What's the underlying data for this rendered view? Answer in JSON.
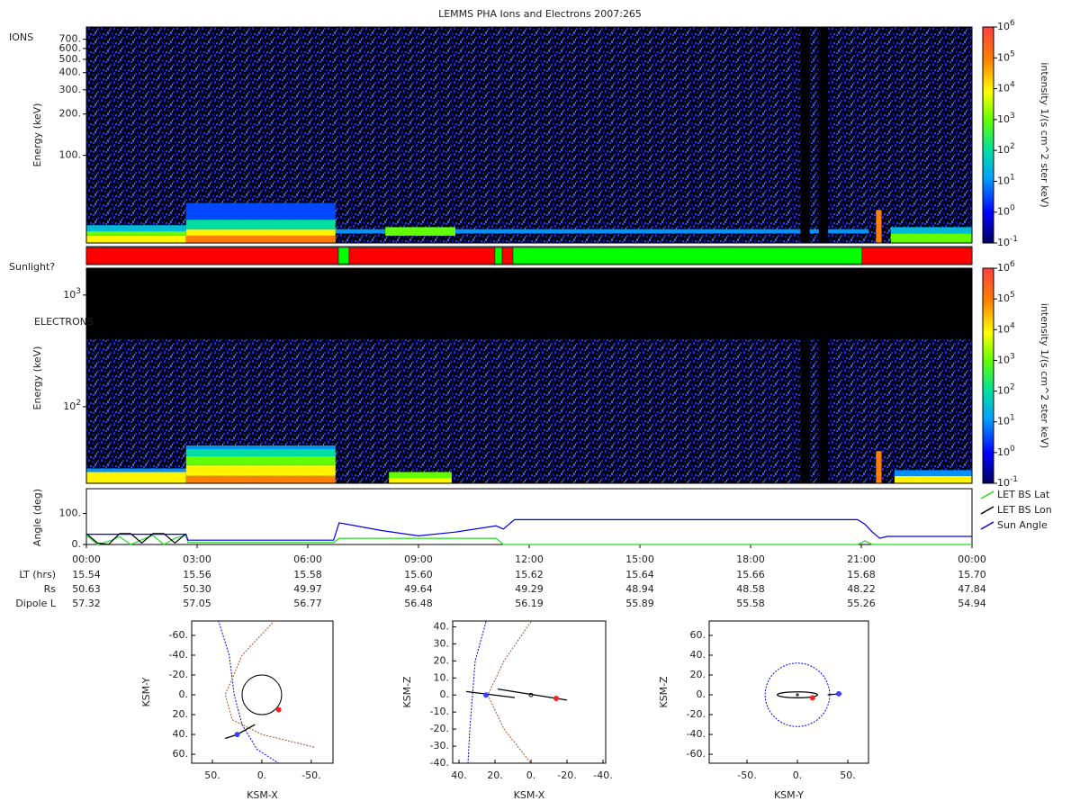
{
  "title": "LEMMS PHA Ions and Electrons  2007:265",
  "chart_data": [
    {
      "type": "spectrogram",
      "label": "IONS",
      "ylabel": "Energy (keV)",
      "log_y": true,
      "xlim": [
        0,
        24
      ],
      "ylim": [
        23,
        860
      ],
      "yticks": [
        {
          "value": 100,
          "label": "100."
        },
        {
          "value": 200,
          "label": "200."
        },
        {
          "value": 300,
          "label": "300."
        },
        {
          "value": 400,
          "label": "400."
        },
        {
          "value": 500,
          "label": "500."
        },
        {
          "value": 600,
          "label": "600."
        },
        {
          "value": 700,
          "label": "700."
        }
      ],
      "colorbar_label": "intensity 1/(s cm^2 ster keV)",
      "clim": [
        0.1,
        1000000
      ],
      "cticks": [
        {
          "value": 0.1,
          "label": "10",
          "sup": "-1"
        },
        {
          "value": 1,
          "label": "10",
          "sup": "0"
        },
        {
          "value": 10,
          "label": "10",
          "sup": "1"
        },
        {
          "value": 100,
          "label": "10",
          "sup": "2"
        },
        {
          "value": 1000,
          "label": "10",
          "sup": "3"
        },
        {
          "value": 10000,
          "label": "10",
          "sup": "4"
        },
        {
          "value": 100000,
          "label": "10",
          "sup": "5"
        },
        {
          "value": 1000000,
          "label": "10",
          "sup": "6"
        }
      ],
      "background": {
        "energy": [
          23,
          860
        ],
        "intensity": 1
      },
      "gaps": [
        [
          19.35,
          19.6
        ],
        [
          19.85,
          20.1
        ]
      ],
      "features": [
        {
          "x": [
            0,
            2.7
          ],
          "energy": [
            23,
            26
          ],
          "intensity": 10000
        },
        {
          "x": [
            0,
            2.7
          ],
          "energy": [
            26,
            28
          ],
          "intensity": 1000
        },
        {
          "x": [
            0,
            2.7
          ],
          "energy": [
            28,
            31
          ],
          "intensity": 30
        },
        {
          "x": [
            6.75,
            21.2
          ],
          "energy": [
            27,
            29
          ],
          "intensity": 10
        },
        {
          "x": [
            2.7,
            6.75
          ],
          "energy": [
            23,
            26
          ],
          "intensity": 100000
        },
        {
          "x": [
            2.7,
            6.75
          ],
          "energy": [
            26,
            29
          ],
          "intensity": 10000
        },
        {
          "x": [
            2.7,
            6.75
          ],
          "energy": [
            29,
            34
          ],
          "intensity": 100
        },
        {
          "x": [
            2.7,
            6.75
          ],
          "energy": [
            34,
            45
          ],
          "intensity": 3
        },
        {
          "x": [
            8.1,
            10.0
          ],
          "energy": [
            26,
            30
          ],
          "intensity": 1000
        },
        {
          "x": [
            21.8,
            24
          ],
          "energy": [
            23,
            27
          ],
          "intensity": 1000
        },
        {
          "x": [
            21.8,
            24
          ],
          "energy": [
            27,
            30
          ],
          "intensity": 30
        },
        {
          "x": [
            21.4,
            21.55
          ],
          "energy": [
            23,
            40
          ],
          "intensity": 100000
        }
      ]
    },
    {
      "type": "status",
      "label": "Sunlight?",
      "xlim": [
        0,
        24
      ],
      "segments": [
        {
          "x": [
            0,
            6.83
          ],
          "color": "#ff0000"
        },
        {
          "x": [
            6.83,
            7.12
          ],
          "color": "#00ff00"
        },
        {
          "x": [
            7.12,
            11.07
          ],
          "color": "#ff0000"
        },
        {
          "x": [
            11.07,
            11.27
          ],
          "color": "#00ff00"
        },
        {
          "x": [
            11.27,
            11.56
          ],
          "color": "#ff0000"
        },
        {
          "x": [
            11.56,
            21.02
          ],
          "color": "#00ff00"
        },
        {
          "x": [
            21.02,
            24
          ],
          "color": "#ff0000"
        }
      ]
    },
    {
      "type": "spectrogram",
      "label": "ELECTRONS",
      "ylabel": "Energy (keV)",
      "log_y": true,
      "xlim": [
        0,
        24
      ],
      "ylim": [
        20.6,
        1740
      ],
      "yticks": [
        {
          "value": 100,
          "label": "10",
          "sup": "2"
        },
        {
          "value": 1000,
          "label": "10",
          "sup": "3"
        }
      ],
      "colorbar_label": "intensity 1/(s cm^2 ster keV)",
      "clim": [
        0.1,
        1000000
      ],
      "cticks": [
        {
          "value": 0.1,
          "label": "10",
          "sup": "-1"
        },
        {
          "value": 1,
          "label": "10",
          "sup": "0"
        },
        {
          "value": 10,
          "label": "10",
          "sup": "1"
        },
        {
          "value": 100,
          "label": "10",
          "sup": "2"
        },
        {
          "value": 1000,
          "label": "10",
          "sup": "3"
        },
        {
          "value": 10000,
          "label": "10",
          "sup": "4"
        },
        {
          "value": 100000,
          "label": "10",
          "sup": "5"
        },
        {
          "value": 1000000,
          "label": "10",
          "sup": "6"
        }
      ],
      "background": {
        "energy": [
          20.6,
          400
        ],
        "intensity": 1
      },
      "gaps": [
        [
          19.35,
          19.6
        ],
        [
          19.85,
          20.1
        ]
      ],
      "features": [
        {
          "x": [
            0,
            2.7
          ],
          "energy": [
            20.6,
            26
          ],
          "intensity": 10000
        },
        {
          "x": [
            0,
            2.7
          ],
          "energy": [
            26,
            28
          ],
          "intensity": 10
        },
        {
          "x": [
            2.7,
            6.75
          ],
          "energy": [
            20.6,
            24
          ],
          "intensity": 100000
        },
        {
          "x": [
            2.7,
            6.75
          ],
          "energy": [
            24,
            30
          ],
          "intensity": 10000
        },
        {
          "x": [
            2.7,
            6.75
          ],
          "energy": [
            30,
            36
          ],
          "intensity": 1000
        },
        {
          "x": [
            2.7,
            6.75
          ],
          "energy": [
            36,
            42
          ],
          "intensity": 100
        },
        {
          "x": [
            2.7,
            6.75
          ],
          "energy": [
            42,
            45
          ],
          "intensity": 10
        },
        {
          "x": [
            8.2,
            9.9
          ],
          "energy": [
            20.6,
            23
          ],
          "intensity": 10000
        },
        {
          "x": [
            8.2,
            9.9
          ],
          "energy": [
            23,
            26
          ],
          "intensity": 1000
        },
        {
          "x": [
            21.9,
            24
          ],
          "energy": [
            20.6,
            24
          ],
          "intensity": 10000
        },
        {
          "x": [
            21.9,
            24
          ],
          "energy": [
            24,
            27
          ],
          "intensity": 10
        },
        {
          "x": [
            21.4,
            21.55
          ],
          "energy": [
            20.6,
            40
          ],
          "intensity": 100000
        }
      ]
    },
    {
      "type": "line",
      "ylabel": "Angle (deg)",
      "xlim": [
        0,
        24
      ],
      "ylim": [
        0,
        180
      ],
      "yticks": [
        {
          "value": 0,
          "label": "0."
        },
        {
          "value": 100,
          "label": "100."
        }
      ],
      "xticks": [
        {
          "value": 0,
          "label": "00:00"
        },
        {
          "value": 3,
          "label": "03:00"
        },
        {
          "value": 6,
          "label": "06:00"
        },
        {
          "value": 9,
          "label": "09:00"
        },
        {
          "value": 12,
          "label": "12:00"
        },
        {
          "value": 15,
          "label": "15:00"
        },
        {
          "value": 18,
          "label": "18:00"
        },
        {
          "value": 21,
          "label": "21:00"
        },
        {
          "value": 24,
          "label": "00:00"
        }
      ],
      "x": [
        0,
        0.3,
        0.6,
        0.9,
        1.2,
        1.5,
        1.8,
        2.1,
        2.4,
        2.7,
        2.75,
        4,
        5,
        6.7,
        6.85,
        8,
        9,
        10,
        11.1,
        11.3,
        11.6,
        15,
        18,
        20.9,
        21.1,
        21.3,
        21.5,
        21.7,
        24
      ],
      "series": [
        {
          "name": "LET BS Lat",
          "color": "#22dd22",
          "values": [
            30,
            0,
            10,
            25,
            0,
            15,
            30,
            0,
            20,
            30,
            6,
            6,
            6,
            6,
            20,
            20,
            20,
            20,
            20,
            0,
            0,
            0,
            0,
            0,
            12,
            0,
            0,
            0,
            0
          ]
        },
        {
          "name": "LET BS Lon",
          "color": "#000000",
          "values": [
            35,
            5,
            0,
            35,
            35,
            5,
            35,
            35,
            5,
            35,
            null,
            null,
            null,
            null,
            null,
            null,
            null,
            null,
            null,
            null,
            null,
            null,
            null,
            null,
            null,
            null,
            null,
            null,
            null
          ]
        },
        {
          "name": "Sun Angle",
          "color": "#0000ee",
          "values": [
            33,
            33,
            33,
            33,
            33,
            33,
            33,
            33,
            33,
            33,
            14,
            14,
            14,
            14,
            70,
            45,
            28,
            40,
            60,
            50,
            80,
            80,
            80,
            80,
            65,
            40,
            20,
            26,
            26
          ]
        }
      ]
    },
    {
      "type": "orbit",
      "xlabel": "KSM-X",
      "ylabel": "KSM-Y",
      "xlim": [
        71,
        -72
      ],
      "ylim": [
        69,
        -74.5
      ],
      "xticks": [
        {
          "value": 50,
          "label": "50."
        },
        {
          "value": 0,
          "label": "0."
        },
        {
          "value": -50,
          "label": "-50."
        }
      ],
      "yticks": [
        {
          "value": -60,
          "label": "-60."
        },
        {
          "value": -40,
          "label": "-40."
        },
        {
          "value": -20,
          "label": "-20."
        },
        {
          "value": 0,
          "label": "0."
        },
        {
          "value": 20,
          "label": "20."
        },
        {
          "value": 40,
          "label": "40."
        },
        {
          "value": 60,
          "label": "60."
        }
      ],
      "curves": [
        {
          "color": "#0000ff",
          "dash": true,
          "x": [
            44,
            33,
            28,
            20,
            5,
            -17
          ],
          "y": [
            -75,
            -40,
            0,
            30,
            55,
            69
          ]
        },
        {
          "color": "#a0522d",
          "dash": true,
          "x": [
            -13,
            20,
            37,
            30,
            0,
            -54
          ],
          "y": [
            -75,
            -40,
            0,
            25,
            40,
            53
          ]
        },
        {
          "color": "#000000",
          "dash": false,
          "x": [
            37,
            25,
            7
          ],
          "y": [
            44,
            40,
            30
          ]
        }
      ],
      "circles": [
        {
          "x": 0,
          "y": 0,
          "r": 20,
          "color": "#000000"
        }
      ],
      "points": [
        {
          "x": -17,
          "y": 15,
          "color": "#ff2020"
        },
        {
          "x": 25,
          "y": 40,
          "color": "#4040ff"
        }
      ]
    },
    {
      "type": "orbit",
      "xlabel": "KSM-X",
      "ylabel": "KSM-Z",
      "xlim": [
        43.5,
        -41.5
      ],
      "ylim": [
        -40,
        43.4
      ],
      "xticks": [
        {
          "value": 40,
          "label": "40."
        },
        {
          "value": 20,
          "label": "20."
        },
        {
          "value": 0,
          "label": "0."
        },
        {
          "value": -20,
          "label": "-20."
        },
        {
          "value": -40,
          "label": "-40."
        }
      ],
      "yticks": [
        {
          "value": 40,
          "label": "40."
        },
        {
          "value": 30,
          "label": "30."
        },
        {
          "value": 20,
          "label": "20."
        },
        {
          "value": 10,
          "label": "10."
        },
        {
          "value": 0,
          "label": "0."
        },
        {
          "value": -10,
          "label": "-10."
        },
        {
          "value": -20,
          "label": "-20."
        },
        {
          "value": -30,
          "label": "-30."
        },
        {
          "value": -40,
          "label": "-40."
        }
      ],
      "curves": [
        {
          "color": "#0000ff",
          "dash": true,
          "x": [
            25,
            31,
            32.5,
            34,
            35
          ],
          "y": [
            43,
            20,
            0,
            -20,
            -40
          ]
        },
        {
          "color": "#a0522d",
          "dash": true,
          "x": [
            0,
            15,
            24,
            15,
            0
          ],
          "y": [
            43,
            20,
            0,
            -20,
            -40
          ]
        },
        {
          "color": "#000000",
          "dash": false,
          "x": [
            36,
            9
          ],
          "y": [
            2,
            -1.5
          ]
        },
        {
          "color": "#000000",
          "dash": false,
          "x": [
            18.5,
            -20
          ],
          "y": [
            3.5,
            -3
          ]
        }
      ],
      "circles": [
        {
          "x": 0,
          "y": 0,
          "r": 1,
          "color": "#000000"
        }
      ],
      "points": [
        {
          "x": -14,
          "y": -2,
          "color": "#ff2020"
        },
        {
          "x": 25,
          "y": 0,
          "color": "#4040ff"
        }
      ]
    },
    {
      "type": "orbit",
      "xlabel": "KSM-Y",
      "ylabel": "KSM-Z",
      "xlim": [
        -87.5,
        70.5
      ],
      "ylim": [
        -69,
        74.5
      ],
      "xticks": [
        {
          "value": -50,
          "label": "-50."
        },
        {
          "value": 0,
          "label": "0."
        },
        {
          "value": 50,
          "label": "50."
        }
      ],
      "yticks": [
        {
          "value": 60,
          "label": "60."
        },
        {
          "value": 40,
          "label": "40."
        },
        {
          "value": 20,
          "label": "20."
        },
        {
          "value": 0,
          "label": "0."
        },
        {
          "value": -20,
          "label": "-20."
        },
        {
          "value": -40,
          "label": "-40."
        },
        {
          "value": -60,
          "label": "-60."
        }
      ],
      "curves": [
        {
          "color": "#000000",
          "dash": false,
          "x": [
            30,
            44
          ],
          "y": [
            0,
            1
          ]
        }
      ],
      "circles": [
        {
          "x": 0,
          "y": 0,
          "r": 32,
          "color": "#0000ff",
          "dash": true
        },
        {
          "x": 0,
          "y": 0,
          "r": 1,
          "color": "#000000"
        }
      ],
      "ellipses": [
        {
          "x": 0,
          "y": 0,
          "rx": 20,
          "ry": 3,
          "color": "#000000"
        }
      ],
      "points": [
        {
          "x": 15,
          "y": -3,
          "color": "#ff2020"
        },
        {
          "x": 41,
          "y": 1,
          "color": "#4040ff"
        }
      ]
    }
  ],
  "ephemeris": [
    {
      "name": "LT (hrs)",
      "values": [
        "15.54",
        "15.56",
        "15.58",
        "15.60",
        "15.62",
        "15.64",
        "15.66",
        "15.68",
        "15.70"
      ]
    },
    {
      "name": "Rs",
      "values": [
        "50.63",
        "50.30",
        "49.97",
        "49.64",
        "49.29",
        "48.94",
        "48.58",
        "48.22",
        "47.84"
      ]
    },
    {
      "name": "Dipole L",
      "values": [
        "57.32",
        "57.05",
        "56.77",
        "56.48",
        "56.19",
        "55.89",
        "55.58",
        "55.26",
        "54.94"
      ]
    }
  ]
}
